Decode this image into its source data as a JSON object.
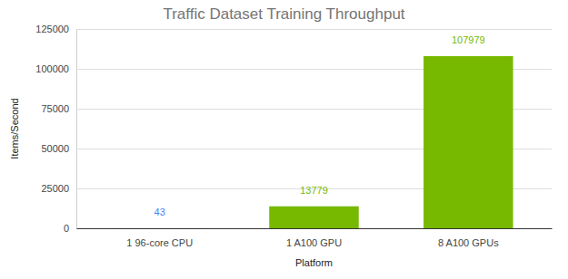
{
  "chart_data": {
    "type": "bar",
    "title": "Traffic Dataset Training Throughput",
    "x_label": "Platform",
    "y_label": "Items/Second",
    "categories": [
      "1 96-core CPU",
      "1 A100 GPU",
      "8 A100 GPUs"
    ],
    "values": [
      43,
      13779,
      107979
    ],
    "colors": [
      "#4285f4",
      "#76b900",
      "#76b900"
    ],
    "ylim": [
      0,
      125000
    ],
    "yticks": [
      0,
      25000,
      50000,
      75000,
      100000,
      125000
    ],
    "grid": true,
    "data_labels": true
  }
}
